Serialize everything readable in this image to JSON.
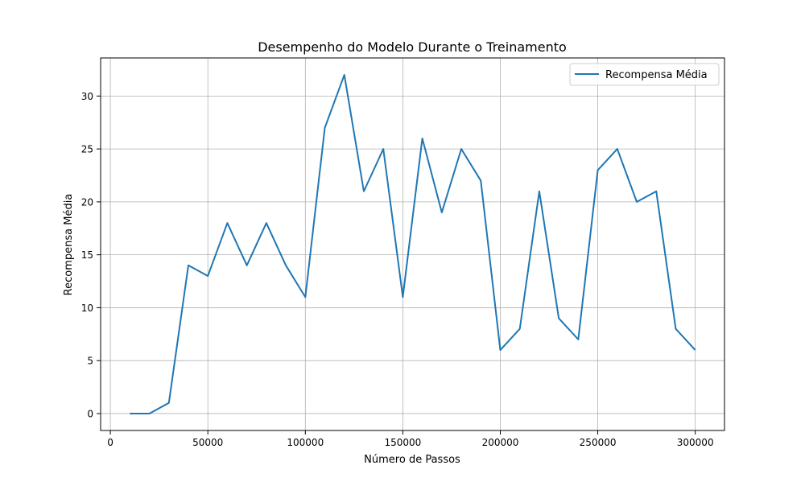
{
  "chart_data": {
    "type": "line",
    "title": "Desempenho do Modelo Durante o Treinamento",
    "xlabel": "Número de Passos",
    "ylabel": "Recompensa Média",
    "xlim": [
      -5000,
      315000
    ],
    "ylim": [
      -1.6,
      33.6
    ],
    "xticks": [
      0,
      50000,
      100000,
      150000,
      200000,
      250000,
      300000
    ],
    "xtick_labels": [
      "0",
      "50000",
      "100000",
      "150000",
      "200000",
      "250000",
      "300000"
    ],
    "yticks": [
      0,
      5,
      10,
      15,
      20,
      25,
      30
    ],
    "ytick_labels": [
      "0",
      "5",
      "10",
      "15",
      "20",
      "25",
      "30"
    ],
    "grid": true,
    "legend_position": "top-right",
    "series": [
      {
        "name": "Recompensa Média",
        "color": "#1f77b4",
        "x": [
          10000,
          20000,
          30000,
          40000,
          50000,
          60000,
          70000,
          80000,
          90000,
          100000,
          110000,
          120000,
          130000,
          140000,
          150000,
          160000,
          170000,
          180000,
          190000,
          200000,
          210000,
          220000,
          230000,
          240000,
          250000,
          260000,
          270000,
          280000,
          290000,
          300000
        ],
        "y": [
          0,
          0,
          1,
          14,
          13,
          18,
          14,
          18,
          14,
          11,
          27,
          32,
          21,
          25,
          11,
          26,
          19,
          25,
          22,
          6,
          8,
          21,
          9,
          7,
          23,
          25,
          20,
          21,
          8,
          6
        ]
      }
    ]
  }
}
